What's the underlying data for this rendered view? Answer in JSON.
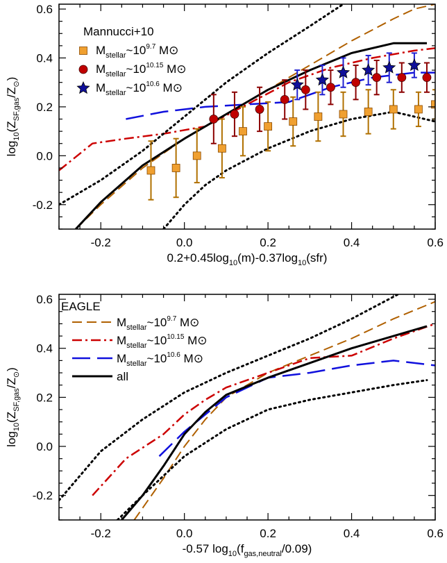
{
  "chart_data": [
    {
      "type": "line",
      "panel": "top",
      "xlabel": "0.2+0.45log10(m)-0.37log10(sfr)",
      "ylabel": "log10(ZSF,gas/Z⊙)",
      "xlim": [
        -0.3,
        0.6
      ],
      "ylim": [
        -0.3,
        0.62
      ],
      "xticks": [
        "-0.2",
        "0.0",
        "0.2",
        "0.4",
        "0.6"
      ],
      "yticks": [
        "-0.2",
        "0.0",
        "0.2",
        "0.4",
        "0.6"
      ],
      "legend_title": "Mannucci+10",
      "legend_placement": "top-left",
      "series": [
        {
          "name": "Mstellar~10^9.7 M⊙",
          "kind": "line",
          "style": "dashed",
          "color": "#b06000",
          "x": [
            -0.26,
            -0.2,
            -0.1,
            0.0,
            0.1,
            0.2,
            0.3,
            0.4,
            0.5,
            0.55,
            0.6
          ],
          "y": [
            -0.3,
            -0.2,
            -0.05,
            0.07,
            0.17,
            0.27,
            0.37,
            0.47,
            0.56,
            0.6,
            0.62
          ]
        },
        {
          "name": "Mstellar~10^10.15 M⊙",
          "kind": "line",
          "style": "dashdot",
          "color": "#cc0000",
          "x": [
            -0.3,
            -0.22,
            -0.14,
            -0.05,
            0.05,
            0.15,
            0.25,
            0.35,
            0.45,
            0.55,
            0.6
          ],
          "y": [
            -0.06,
            0.05,
            0.07,
            0.09,
            0.12,
            0.21,
            0.3,
            0.36,
            0.4,
            0.43,
            0.44
          ]
        },
        {
          "name": "Mstellar~10^10.6 M⊙",
          "kind": "line",
          "style": "longdash",
          "color": "#1010dd",
          "x": [
            -0.14,
            -0.05,
            0.05,
            0.15,
            0.25,
            0.35,
            0.45,
            0.55,
            0.6
          ],
          "y": [
            0.15,
            0.18,
            0.2,
            0.21,
            0.22,
            0.28,
            0.32,
            0.34,
            0.34
          ]
        },
        {
          "name": "all",
          "kind": "line",
          "style": "solid",
          "color": "#000000",
          "x": [
            -0.26,
            -0.2,
            -0.1,
            0.0,
            0.1,
            0.2,
            0.3,
            0.4,
            0.5,
            0.58
          ],
          "y": [
            -0.3,
            -0.19,
            -0.04,
            0.07,
            0.17,
            0.27,
            0.35,
            0.42,
            0.46,
            0.46
          ]
        },
        {
          "name": "upper-dotted",
          "kind": "line",
          "style": "dotted",
          "color": "#000000",
          "x": [
            -0.3,
            -0.2,
            -0.1,
            0.0,
            0.1,
            0.2,
            0.3,
            0.38,
            0.42
          ],
          "y": [
            -0.2,
            -0.1,
            0.02,
            0.16,
            0.3,
            0.42,
            0.53,
            0.62,
            0.66
          ]
        },
        {
          "name": "lower-dotted",
          "kind": "line",
          "style": "dotted",
          "color": "#000000",
          "x": [
            -0.05,
            0.0,
            0.05,
            0.1,
            0.2,
            0.3,
            0.4,
            0.5,
            0.6
          ],
          "y": [
            -0.3,
            -0.2,
            -0.12,
            -0.06,
            0.03,
            0.1,
            0.15,
            0.18,
            0.14
          ]
        },
        {
          "name": "Mstellar~10^9.7 M⊙",
          "kind": "points",
          "marker": "square",
          "color": "#f0a030",
          "errcolor": "#b07000",
          "x": [
            -0.08,
            -0.02,
            0.03,
            0.09,
            0.14,
            0.2,
            0.26,
            0.32,
            0.38,
            0.44,
            0.5,
            0.56,
            0.6
          ],
          "y": [
            -0.06,
            -0.05,
            0.0,
            0.03,
            0.1,
            0.12,
            0.14,
            0.16,
            0.17,
            0.18,
            0.19,
            0.19,
            0.21
          ],
          "err": [
            0.12,
            0.12,
            0.11,
            0.12,
            0.1,
            0.1,
            0.1,
            0.1,
            0.09,
            0.09,
            0.08,
            0.07,
            0.06
          ]
        },
        {
          "name": "Mstellar~10^10.15 M⊙",
          "kind": "points",
          "marker": "circle",
          "color": "#c00000",
          "errcolor": "#8b0000",
          "x": [
            0.07,
            0.12,
            0.18,
            0.24,
            0.29,
            0.35,
            0.41,
            0.46,
            0.52,
            0.58
          ],
          "y": [
            0.15,
            0.17,
            0.19,
            0.23,
            0.27,
            0.28,
            0.3,
            0.32,
            0.32,
            0.32
          ],
          "err": [
            0.1,
            0.09,
            0.09,
            0.08,
            0.08,
            0.07,
            0.07,
            0.07,
            0.06,
            0.06
          ]
        },
        {
          "name": "Mstellar~10^10.6 M⊙",
          "kind": "points",
          "marker": "star",
          "color": "#10109a",
          "errcolor": "#2020d0",
          "x": [
            0.27,
            0.33,
            0.38,
            0.44,
            0.49,
            0.55
          ],
          "y": [
            0.29,
            0.31,
            0.34,
            0.35,
            0.36,
            0.37
          ],
          "err": [
            0.06,
            0.06,
            0.06,
            0.06,
            0.06,
            0.05
          ]
        }
      ],
      "legend": [
        {
          "base": "M",
          "sub": "stellar",
          "mid": "~10",
          "sup": "9.7",
          "tail": " M⊙",
          "marker": "square",
          "color": "#f0a030"
        },
        {
          "base": "M",
          "sub": "stellar",
          "mid": "~10",
          "sup": "10.15",
          "tail": " M⊙",
          "marker": "circle",
          "color": "#c00000"
        },
        {
          "base": "M",
          "sub": "stellar",
          "mid": "~10",
          "sup": "10.6",
          "tail": " M⊙",
          "marker": "star",
          "color": "#10109a"
        }
      ]
    },
    {
      "type": "line",
      "panel": "bottom",
      "xlabel": "-0.57 log10(fgas,neutral/0.09)",
      "ylabel": "log10(ZSF,gas/Z⊙)",
      "xlim": [
        -0.3,
        0.6
      ],
      "ylim": [
        -0.3,
        0.62
      ],
      "xticks": [
        "-0.2",
        "0.0",
        "0.2",
        "0.4",
        "0.6"
      ],
      "yticks": [
        "-0.2",
        "0.0",
        "0.2",
        "0.4",
        "0.6"
      ],
      "legend_title": "EAGLE",
      "legend_placement": "top-left",
      "series": [
        {
          "name": "Mstellar~10^9.7 M⊙",
          "kind": "line",
          "style": "dashed",
          "color": "#b06000",
          "x": [
            -0.12,
            -0.05,
            0.0,
            0.05,
            0.1,
            0.2,
            0.3,
            0.4,
            0.5,
            0.6
          ],
          "y": [
            -0.3,
            -0.13,
            0.0,
            0.11,
            0.2,
            0.3,
            0.37,
            0.44,
            0.52,
            0.59
          ]
        },
        {
          "name": "Mstellar~10^10.15 M⊙",
          "kind": "line",
          "style": "dashdot",
          "color": "#cc0000",
          "x": [
            -0.22,
            -0.14,
            -0.05,
            0.0,
            0.05,
            0.1,
            0.2,
            0.3,
            0.4,
            0.5,
            0.6
          ],
          "y": [
            -0.2,
            -0.05,
            0.05,
            0.13,
            0.19,
            0.24,
            0.3,
            0.36,
            0.37,
            0.44,
            0.5
          ]
        },
        {
          "name": "Mstellar~10^10.6 M⊙",
          "kind": "line",
          "style": "longdash",
          "color": "#1010dd",
          "x": [
            -0.06,
            0.0,
            0.05,
            0.1,
            0.2,
            0.3,
            0.4,
            0.5,
            0.6
          ],
          "y": [
            -0.04,
            0.06,
            0.13,
            0.2,
            0.28,
            0.3,
            0.33,
            0.35,
            0.33
          ]
        },
        {
          "name": "all",
          "kind": "line",
          "style": "solid",
          "color": "#000000",
          "x": [
            -0.15,
            -0.1,
            -0.05,
            0.0,
            0.05,
            0.1,
            0.2,
            0.3,
            0.4,
            0.5,
            0.58
          ],
          "y": [
            -0.3,
            -0.2,
            -0.08,
            0.05,
            0.14,
            0.21,
            0.28,
            0.34,
            0.4,
            0.45,
            0.49
          ]
        },
        {
          "name": "upper-dotted",
          "kind": "line",
          "style": "dotted",
          "color": "#000000",
          "x": [
            -0.3,
            -0.2,
            -0.1,
            0.0,
            0.1,
            0.2,
            0.3,
            0.4,
            0.5,
            0.6
          ],
          "y": [
            -0.22,
            -0.02,
            0.11,
            0.22,
            0.3,
            0.37,
            0.44,
            0.52,
            0.61,
            0.7
          ]
        },
        {
          "name": "lower-dotted",
          "kind": "line",
          "style": "dotted",
          "color": "#000000",
          "x": [
            -0.16,
            -0.1,
            -0.05,
            0.0,
            0.1,
            0.2,
            0.3,
            0.4,
            0.5,
            0.58
          ],
          "y": [
            -0.3,
            -0.2,
            -0.12,
            -0.04,
            0.07,
            0.15,
            0.19,
            0.22,
            0.25,
            0.27
          ]
        }
      ],
      "legend": [
        {
          "base": "M",
          "sub": "stellar",
          "mid": "~10",
          "sup": "9.7",
          "tail": " M⊙",
          "line": "dashed",
          "color": "#b06000"
        },
        {
          "base": "M",
          "sub": "stellar",
          "mid": "~10",
          "sup": "10.15",
          "tail": " M⊙",
          "line": "dashdot",
          "color": "#cc0000"
        },
        {
          "base": "M",
          "sub": "stellar",
          "mid": "~10",
          "sup": "10.6",
          "tail": " M⊙",
          "line": "longdash",
          "color": "#1010dd"
        },
        {
          "base": "all",
          "line": "solid",
          "color": "#000000"
        }
      ]
    }
  ]
}
